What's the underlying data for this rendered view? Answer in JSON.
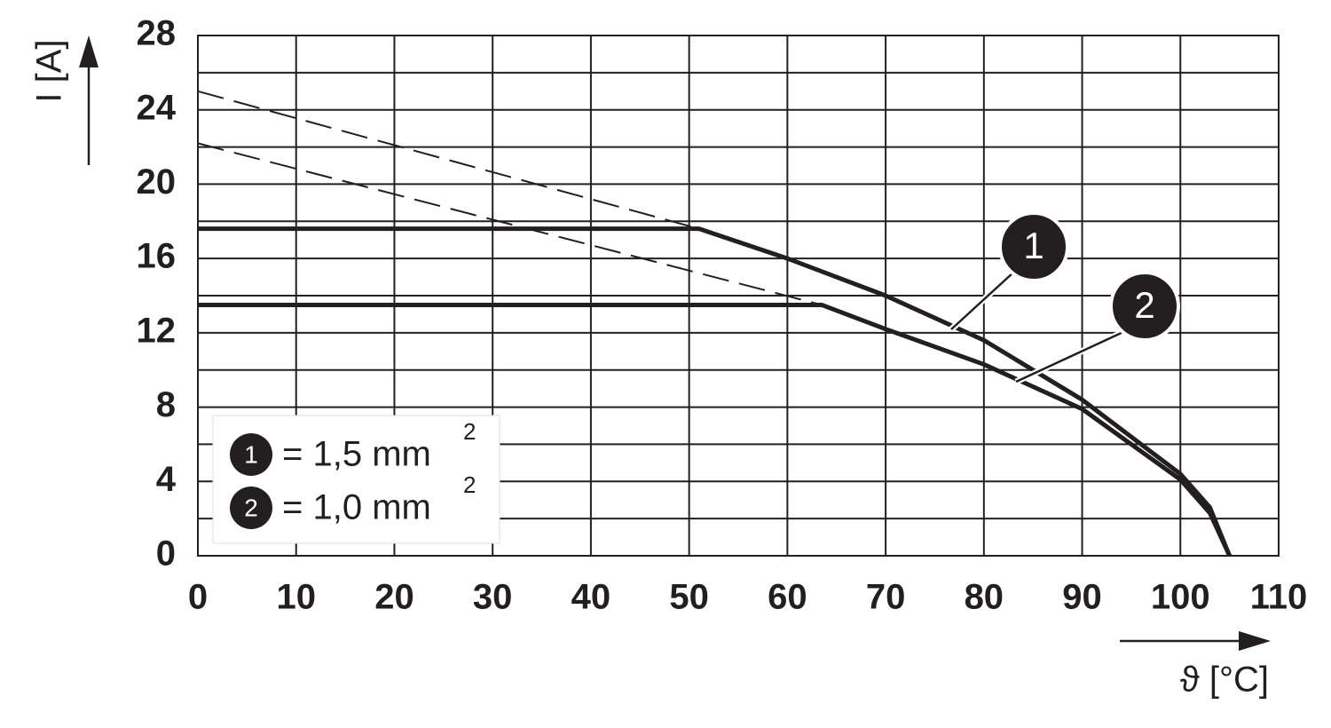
{
  "chart_data": {
    "type": "line",
    "xlabel": "ϑ [°C]",
    "ylabel": "I [A]",
    "xlim": [
      0,
      110
    ],
    "xticks": [
      0,
      10,
      20,
      30,
      40,
      50,
      60,
      70,
      80,
      90,
      100,
      110
    ],
    "ylim": [
      0,
      28
    ],
    "yticks": [
      0,
      4,
      8,
      12,
      16,
      20,
      24,
      28
    ],
    "yminor": [
      2,
      6,
      10,
      14,
      18,
      22,
      26
    ],
    "grid": true,
    "series": [
      {
        "name": "1",
        "label": "= 1,5 mm",
        "label_sup": "2",
        "color": "#231f20",
        "x": [
          0,
          51,
          60,
          70,
          80,
          90,
          100,
          103,
          105
        ],
        "values": [
          17.6,
          17.6,
          16,
          14,
          11.6,
          8.4,
          4.4,
          2.6,
          0
        ],
        "extrapolation": {
          "x": [
            0,
            51
          ],
          "values": [
            25,
            17.6
          ]
        }
      },
      {
        "name": "2",
        "label": "= 1,0 mm",
        "label_sup": "2",
        "color": "#231f20",
        "x": [
          0,
          63.5,
          70,
          80,
          90,
          100,
          103,
          105
        ],
        "values": [
          13.5,
          13.5,
          12.2,
          10.3,
          7.9,
          4.1,
          2.3,
          0
        ],
        "extrapolation": {
          "x": [
            0,
            63.5
          ],
          "values": [
            22.2,
            13.5
          ]
        }
      }
    ]
  }
}
